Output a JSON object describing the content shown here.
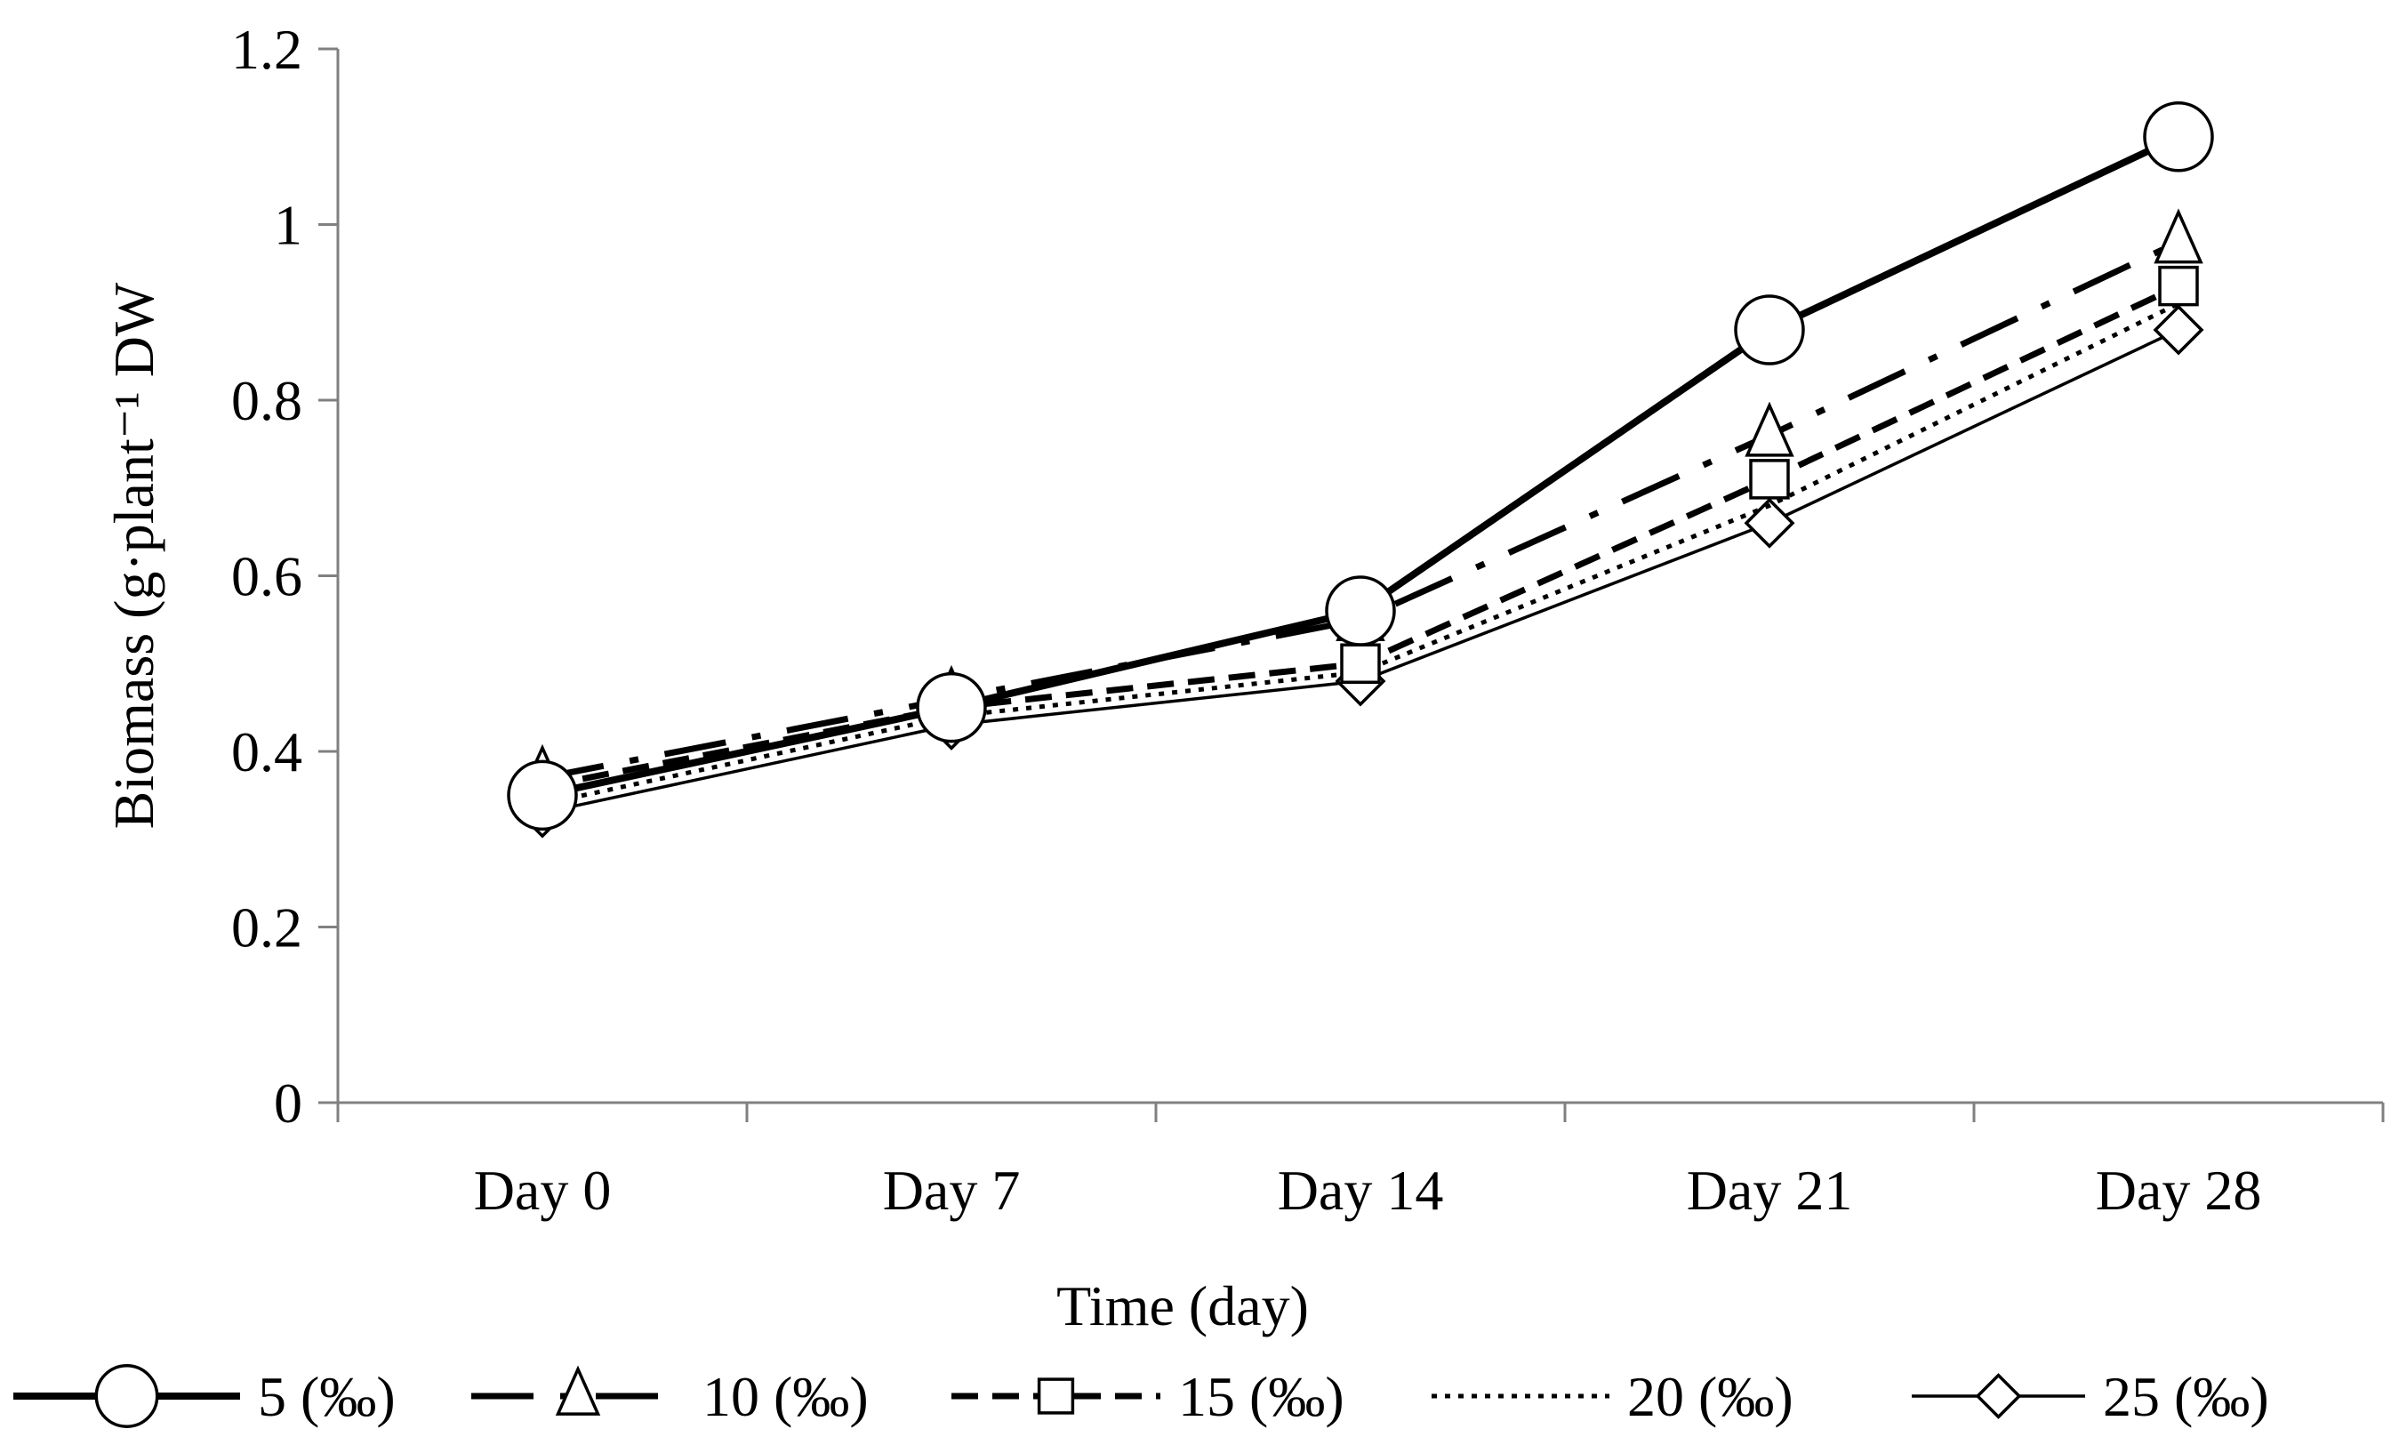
{
  "chart_data": {
    "type": "line",
    "xlabel": "Time (day)",
    "ylabel": "Biomass (g·plant⁻¹ DW",
    "categories": [
      "Day 0",
      "Day 7",
      "Day 14",
      "Day 21",
      "Day 28"
    ],
    "ylim": [
      0,
      1.2
    ],
    "yticks": [
      "0",
      "0.2",
      "0.4",
      "0.6",
      "0.8",
      "1",
      "1.2"
    ],
    "grid": false,
    "legend_position": "bottom",
    "series": [
      {
        "name": "5  (‰)",
        "values": [
          0.35,
          0.45,
          0.56,
          0.88,
          1.1
        ],
        "marker": "circle",
        "line": "solid-thick"
      },
      {
        "name": "10  (‰)",
        "values": [
          0.37,
          0.46,
          0.55,
          0.76,
          0.98
        ],
        "marker": "triangle",
        "line": "dash-dot"
      },
      {
        "name": "15  (‰)",
        "values": [
          0.36,
          0.45,
          0.5,
          0.71,
          0.93
        ],
        "marker": "square",
        "line": "dashed"
      },
      {
        "name": "20  (‰)",
        "values": [
          0.34,
          0.44,
          0.49,
          0.68,
          0.91
        ],
        "marker": "none",
        "line": "dotted"
      },
      {
        "name": "25  (‰)",
        "values": [
          0.33,
          0.43,
          0.48,
          0.66,
          0.88
        ],
        "marker": "diamond",
        "line": "solid-thin"
      }
    ]
  }
}
